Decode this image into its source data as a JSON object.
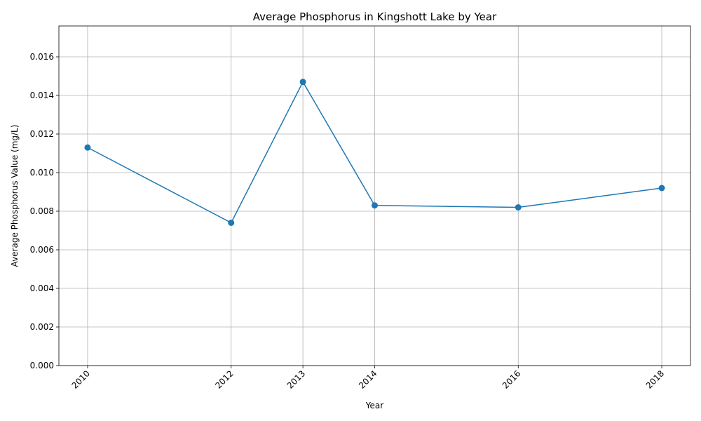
{
  "chart_data": {
    "type": "line",
    "title": "Average Phosphorus in Kingshott Lake by Year",
    "xlabel": "Year",
    "ylabel": "Average Phosphorus Value (mg/L)",
    "x": [
      2010,
      2012,
      2013,
      2014,
      2016,
      2018
    ],
    "x_tick_labels": [
      "2010",
      "2012",
      "2013",
      "2014",
      "2016",
      "2018"
    ],
    "xlim": [
      2009.6,
      2018.4
    ],
    "ylim": [
      0,
      0.0176
    ],
    "y_ticks": [
      0,
      0.002,
      0.004,
      0.006,
      0.008,
      0.01,
      0.012,
      0.014,
      0.016
    ],
    "y_tick_labels": [
      "0.000",
      "0.002",
      "0.004",
      "0.006",
      "0.008",
      "0.010",
      "0.012",
      "0.014",
      "0.016"
    ],
    "grid": true,
    "legend": "none",
    "series": [
      {
        "color": "#1f77b4",
        "marker": "circle",
        "values": [
          0.0113,
          0.0074,
          0.0147,
          0.0083,
          0.0082,
          0.0092
        ]
      }
    ]
  }
}
